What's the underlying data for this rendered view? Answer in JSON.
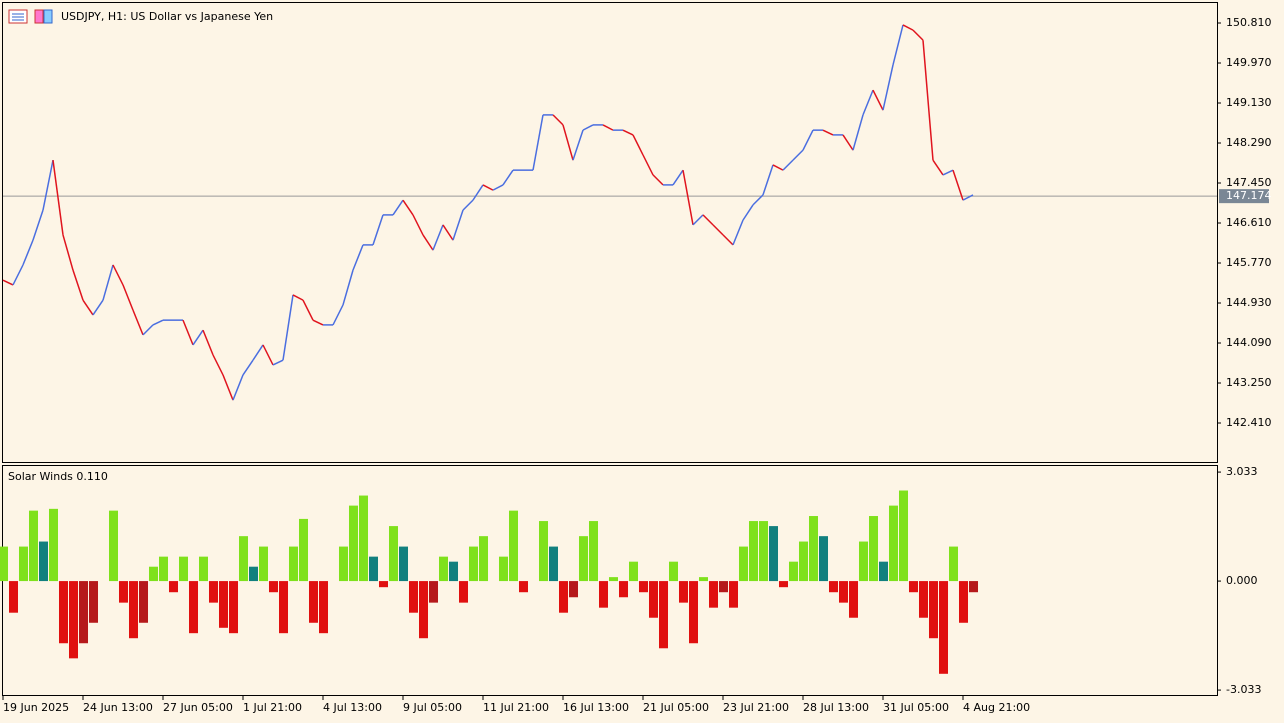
{
  "chart_data": [
    {
      "type": "line",
      "title": "USDJPY, H1:  US Dollar vs Japanese Yen",
      "categories": [
        "19 Jun 2025",
        null,
        null,
        null,
        null,
        null,
        null,
        null,
        "24 Jun 13:00",
        null,
        null,
        null,
        null,
        null,
        null,
        null,
        "27 Jun 05:00",
        null,
        null,
        null,
        null,
        null,
        null,
        null,
        "1 Jul 21:00",
        null,
        null,
        null,
        null,
        null,
        null,
        null,
        "4 Jul 13:00",
        null,
        null,
        null,
        null,
        null,
        null,
        null,
        "9 Jul 05:00",
        null,
        null,
        null,
        null,
        null,
        null,
        null,
        "11 Jul 21:00",
        null,
        null,
        null,
        null,
        null,
        null,
        null,
        "16 Jul 13:00",
        null,
        null,
        null,
        null,
        null,
        null,
        null,
        "21 Jul 05:00",
        null,
        null,
        null,
        null,
        null,
        null,
        null,
        "23 Jul 21:00",
        null,
        null,
        null,
        null,
        null,
        null,
        null,
        "28 Jul 13:00",
        null,
        null,
        null,
        null,
        null,
        null,
        null,
        "31 Jul 05:00",
        null,
        null,
        null,
        null,
        null,
        null,
        null,
        "4 Aug 21:00",
        null
      ],
      "values": [
        145.41,
        145.31,
        145.73,
        146.25,
        146.88,
        147.93,
        146.36,
        145.62,
        144.99,
        144.68,
        144.99,
        145.73,
        145.31,
        144.78,
        144.26,
        144.47,
        144.57,
        144.57,
        144.57,
        144.05,
        144.36,
        143.84,
        143.42,
        142.89,
        143.42,
        143.73,
        144.05,
        143.63,
        143.73,
        145.1,
        144.99,
        144.57,
        144.47,
        144.47,
        144.89,
        145.62,
        146.15,
        146.15,
        146.78,
        146.78,
        147.09,
        146.78,
        146.36,
        146.04,
        146.57,
        146.25,
        146.88,
        147.09,
        147.41,
        147.3,
        147.41,
        147.72,
        147.72,
        147.72,
        148.88,
        148.88,
        148.67,
        147.93,
        148.56,
        148.67,
        148.67,
        148.56,
        148.56,
        148.46,
        148.04,
        147.62,
        147.41,
        147.41,
        147.72,
        146.57,
        146.78,
        146.57,
        146.36,
        146.15,
        146.67,
        146.99,
        147.2,
        147.83,
        147.72,
        147.93,
        148.14,
        148.56,
        148.56,
        148.46,
        148.46,
        148.14,
        148.88,
        149.4,
        148.98,
        149.93,
        150.77,
        150.66,
        150.45,
        147.93,
        147.62,
        147.72,
        147.09,
        147.2
      ],
      "color_up": "#4a6ee0",
      "color_down": "#e0141e",
      "ylim": [
        141.591,
        151.251
      ],
      "yticks": [
        {
          "value": 150.81,
          "label": "150.810"
        },
        {
          "value": 149.97,
          "label": "149.970"
        },
        {
          "value": 149.13,
          "label": "149.130"
        },
        {
          "value": 148.29,
          "label": "148.290"
        },
        {
          "value": 147.45,
          "label": "147.450"
        },
        {
          "value": 146.61,
          "label": "146.610"
        },
        {
          "value": 145.77,
          "label": "145.770"
        },
        {
          "value": 144.93,
          "label": "144.930"
        },
        {
          "value": 144.09,
          "label": "144.090"
        },
        {
          "value": 143.25,
          "label": "143.250"
        },
        {
          "value": 142.41,
          "label": "142.410"
        }
      ],
      "last_price": {
        "value": 147.174,
        "label": "147.174"
      }
    },
    {
      "type": "bar",
      "title": "Solar Winds 0.110",
      "values": [
        0.96,
        -0.88,
        0.96,
        1.96,
        1.1,
        2.01,
        -1.73,
        -2.15,
        -1.73,
        -1.16,
        0,
        1.96,
        -0.6,
        -1.59,
        -1.16,
        0.4,
        0.68,
        -0.31,
        0.68,
        -1.45,
        0.68,
        -0.6,
        -1.3,
        -1.45,
        1.25,
        0.4,
        0.96,
        -0.31,
        -1.45,
        0.96,
        1.73,
        -1.16,
        -1.45,
        0,
        0.96,
        2.1,
        2.38,
        0.68,
        -0.17,
        1.53,
        0.96,
        -0.88,
        -1.59,
        -0.6,
        0.68,
        0.54,
        -0.6,
        0.96,
        1.25,
        0,
        0.68,
        1.96,
        -0.31,
        0,
        1.67,
        0.96,
        -0.88,
        -0.45,
        1.25,
        1.67,
        -0.74,
        0.11,
        -0.45,
        0.54,
        -0.31,
        -1.02,
        -1.87,
        0.54,
        -0.6,
        -1.73,
        0.11,
        -0.74,
        -0.31,
        -0.74,
        0.96,
        1.67,
        1.67,
        1.53,
        -0.17,
        0.54,
        1.1,
        1.81,
        1.25,
        -0.31,
        -0.6,
        -1.02,
        1.1,
        1.81,
        0.54,
        2.1,
        2.52,
        -0.31,
        -1.02,
        -1.59,
        -2.58,
        0.96,
        -1.16,
        -0.31
      ],
      "color_up": "#7fe11c",
      "color_up_fading": "#12807e",
      "color_down": "#e01010",
      "color_down_fading": "#b5191b",
      "ylim": [
        -3.17,
        3.23
      ],
      "yticks": [
        {
          "value": 3.033,
          "label": "3.033"
        },
        {
          "value": 0,
          "label": "0.000"
        },
        {
          "value": -3.033,
          "label": "-3.033"
        }
      ]
    }
  ]
}
